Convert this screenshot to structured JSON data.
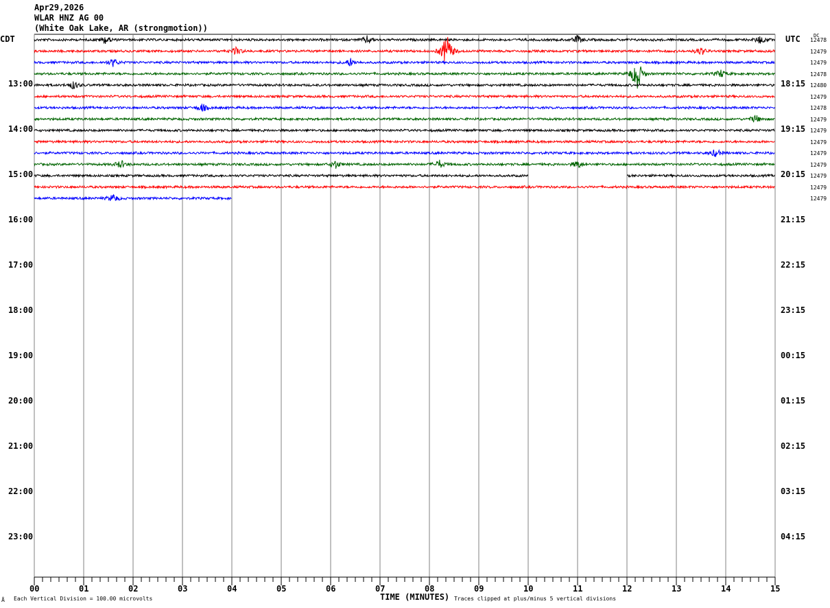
{
  "header": {
    "date": "Apr29,2026",
    "station": "WLAR HNZ AG 00",
    "location": "(White Oak Lake, AR (strongmotion))"
  },
  "left_axis_title": "CDT",
  "right_axis_title": "UTC",
  "dc_title": "DC",
  "left_hour_labels": [
    "13:00",
    "14:00",
    "15:00",
    "16:00",
    "17:00",
    "18:00",
    "19:00",
    "20:00",
    "21:00",
    "22:00",
    "23:00"
  ],
  "right_hour_labels": [
    "18:15",
    "19:15",
    "20:15",
    "21:15",
    "22:15",
    "23:15",
    "00:15",
    "01:15",
    "02:15",
    "03:15",
    "04:15"
  ],
  "dc_values": [
    "12478",
    "12479",
    "12479",
    "12478",
    "12480",
    "12479",
    "12478",
    "12479",
    "12479",
    "12479",
    "12479",
    "12479",
    "12479",
    "12479",
    "12479"
  ],
  "footer": {
    "scale_note": "Each Vertical Division =  100.00 microvolts",
    "xlabel": "TIME (MINUTES)",
    "clip_note": "Traces clipped at plus/minus 5 vertical divisions"
  },
  "chart_data": {
    "type": "line",
    "subtype": "helicorder",
    "xlabel": "TIME (MINUTES)",
    "xlim": [
      0,
      15
    ],
    "x_tick_labels": [
      "00",
      "01",
      "02",
      "03",
      "04",
      "05",
      "06",
      "07",
      "08",
      "09",
      "10",
      "11",
      "12",
      "13",
      "14",
      "15"
    ],
    "rows_per_hour": 4,
    "start_time_local": "12:00",
    "end_time_local": "24:00",
    "trace_colors": [
      "#000000",
      "#ff0000",
      "#0000ff",
      "#006400"
    ],
    "grid": true,
    "traces": [
      {
        "row": 0,
        "start": 0,
        "end": 15,
        "events": [
          1.45,
          6.75,
          11.0,
          14.7
        ]
      },
      {
        "row": 1,
        "start": 0,
        "end": 15,
        "events": [
          4.1,
          8.35,
          13.5
        ]
      },
      {
        "row": 2,
        "start": 0,
        "end": 15,
        "events": [
          1.6,
          6.4
        ]
      },
      {
        "row": 3,
        "start": 0,
        "end": 15,
        "events": [
          12.2,
          13.9
        ]
      },
      {
        "row": 4,
        "start": 0,
        "end": 15,
        "events": [
          0.8
        ]
      },
      {
        "row": 5,
        "start": 0,
        "end": 15,
        "events": []
      },
      {
        "row": 6,
        "start": 0,
        "end": 15,
        "events": [
          3.4
        ]
      },
      {
        "row": 7,
        "start": 0,
        "end": 15,
        "events": [
          14.6
        ]
      },
      {
        "row": 8,
        "start": 0,
        "end": 15,
        "events": []
      },
      {
        "row": 9,
        "start": 0,
        "end": 15,
        "events": []
      },
      {
        "row": 10,
        "start": 0,
        "end": 15,
        "events": [
          13.8
        ]
      },
      {
        "row": 11,
        "start": 0,
        "end": 15,
        "events": [
          1.75,
          6.1,
          8.2,
          11.0
        ]
      },
      {
        "row": 12,
        "start": 0,
        "end": 15,
        "gap": [
          10,
          12
        ],
        "events": []
      },
      {
        "row": 13,
        "start": 0,
        "end": 15,
        "events": []
      },
      {
        "row": 14,
        "start": 0,
        "end": 4,
        "events": [
          1.6
        ]
      }
    ]
  }
}
